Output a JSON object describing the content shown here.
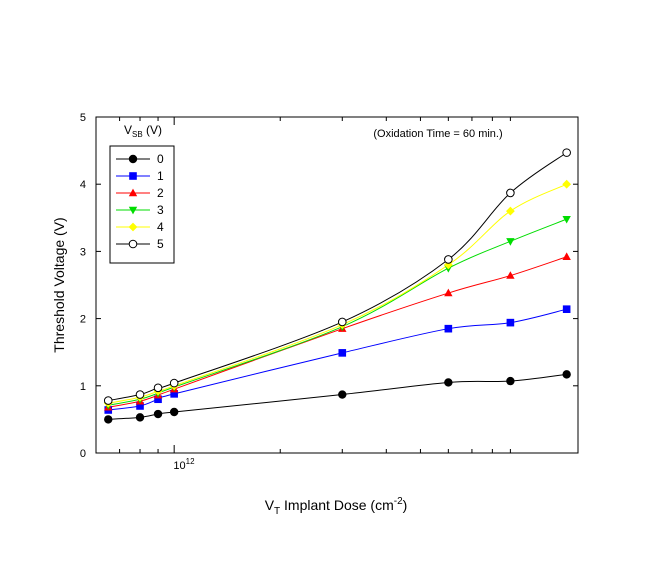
{
  "chart_data": {
    "type": "line",
    "xscale": "log",
    "annotation": "(Oxidation Time = 60 min.)",
    "xlabel": {
      "main": "V",
      "sub": "T",
      "rest": " Implant Dose (cm",
      "sup": "-2",
      "end": ")"
    },
    "ylabel": "Threshold Voltage (V)",
    "ylim": [
      0,
      5
    ],
    "yticks": [
      "0",
      "1",
      "2",
      "3",
      "4",
      "5"
    ],
    "xlim": [
      600000000000.0,
      14000000000000.0
    ],
    "xtick": {
      "value": 1000000000000.0,
      "base": "10",
      "exp": "12"
    },
    "legend_title": {
      "main": "V",
      "sub": "SB",
      "rest": " (V)"
    },
    "legend_position": "top-left",
    "grid": false,
    "x": [
      650000000000.0,
      800000000000.0,
      900000000000.0,
      1000000000000.0,
      3000000000000.0,
      6000000000000.0,
      9000000000000.0,
      13000000000000.0
    ],
    "series": [
      {
        "name": "0",
        "color": "#000000",
        "marker": "circle-filled",
        "values": [
          0.5,
          0.53,
          0.58,
          0.61,
          0.87,
          1.05,
          1.07,
          1.17
        ]
      },
      {
        "name": "1",
        "color": "#0000ff",
        "marker": "square",
        "values": [
          0.64,
          0.7,
          0.8,
          0.88,
          1.49,
          1.85,
          1.94,
          2.14
        ]
      },
      {
        "name": "2",
        "color": "#ff0000",
        "marker": "triangle-up",
        "values": [
          0.68,
          0.77,
          0.86,
          0.95,
          1.85,
          2.38,
          2.64,
          2.92
        ]
      },
      {
        "name": "3",
        "color": "#00dd00",
        "marker": "triangle-down",
        "values": [
          0.71,
          0.8,
          0.89,
          0.98,
          1.88,
          2.75,
          3.15,
          3.48
        ]
      },
      {
        "name": "4",
        "color": "#ffff00",
        "marker": "diamond",
        "values": [
          0.74,
          0.83,
          0.92,
          1.0,
          1.91,
          2.8,
          3.6,
          4.0
        ]
      },
      {
        "name": "5",
        "color": "#000000",
        "marker": "circle-open",
        "values": [
          0.78,
          0.87,
          0.97,
          1.04,
          1.95,
          2.88,
          3.87,
          4.47
        ]
      }
    ]
  }
}
